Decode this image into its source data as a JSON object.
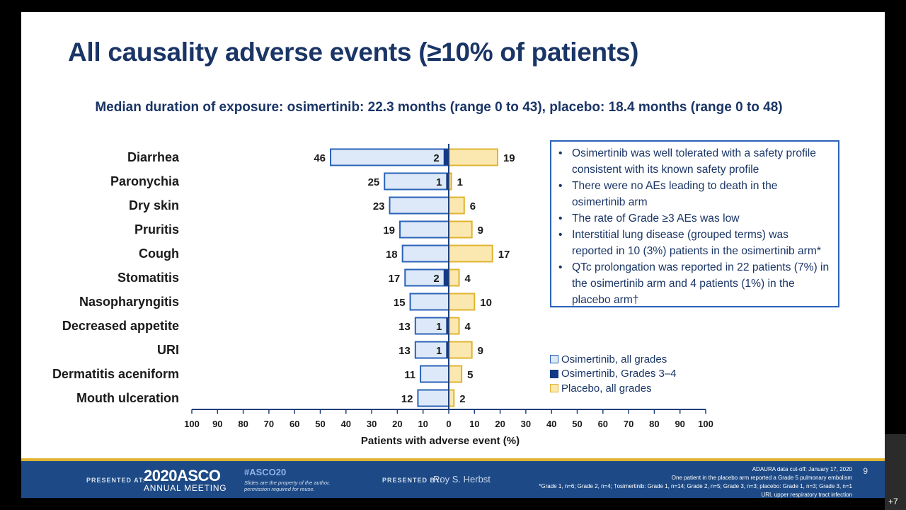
{
  "slide": {
    "title": "All causality adverse events (≥10% of patients)",
    "subtitle": "Median duration of exposure: osimertinib: 22.3 months (range 0 to 43), placebo: 18.4 months (range 0 to 48)",
    "bullets": [
      "Osimertinib was well tolerated with a safety profile consistent with its known safety profile",
      "There were no AEs leading to death in the osimertinib arm",
      "The rate of Grade ≥3 AEs was low",
      "Interstitial lung disease (grouped terms) was reported in 10 (3%) patients in the osimertinib arm*",
      "QTc prolongation was reported in 22 patients (7%) in the osimertinib arm and 4 patients (1%) in the placebo arm†"
    ],
    "bullet_symbol": "•"
  },
  "colors": {
    "title": "#1a3566",
    "osi_fill": "#dde9f8",
    "osi_stroke": "#2a62b8",
    "grade34": "#143a85",
    "placebo_fill": "#fbe8b0",
    "placebo_stroke": "#e0b430",
    "footer_bg": "#1d4a86"
  },
  "chart_data": {
    "type": "bar",
    "orientation": "horizontal-diverging",
    "categories": [
      "Diarrhea",
      "Paronychia",
      "Dry skin",
      "Pruritis",
      "Cough",
      "Stomatitis",
      "Nasopharyngitis",
      "Decreased appetite",
      "URI",
      "Dermatitis aceniform",
      "Mouth ulceration"
    ],
    "series": [
      {
        "name": "Osimertinib, all grades",
        "direction": "left",
        "values": [
          46,
          25,
          23,
          19,
          18,
          17,
          15,
          13,
          13,
          11,
          12
        ]
      },
      {
        "name": "Osimertinib, Grades 3–4",
        "direction": "left",
        "values": [
          2,
          1,
          null,
          null,
          null,
          2,
          null,
          1,
          1,
          null,
          null
        ]
      },
      {
        "name": "Placebo, all grades",
        "direction": "right",
        "values": [
          19,
          1,
          6,
          9,
          17,
          4,
          10,
          4,
          9,
          5,
          2
        ]
      }
    ],
    "xlabel": "Patients with adverse event (%)",
    "xticks": [
      "100",
      "90",
      "80",
      "70",
      "60",
      "50",
      "40",
      "30",
      "20",
      "10",
      "0",
      "10",
      "20",
      "30",
      "40",
      "50",
      "60",
      "70",
      "80",
      "90",
      "100"
    ],
    "xlim": [
      -100,
      100
    ],
    "grid": false,
    "legend": "right"
  },
  "footer": {
    "presented_at": "PRESENTED AT:",
    "year": "2020ASCO",
    "meeting": "ANNUAL MEETING",
    "hashtag": "#ASCO20",
    "note_line1": "Slides are the property of the author,",
    "note_line2": "permission required for reuse.",
    "presented_by": "PRESENTED BY:",
    "presenter": "Roy S. Herbst",
    "footnotes": [
      "ADAURA data cut-off: January 17, 2020",
      "One patient in the placebo arm reported a Grade 5 pulmonary embolism",
      "*Grade 1, n=6; Grade 2, n=4; †osimertinib: Grade 1, n=14; Grade 2, n=5; Grade 3, n=3; placebo: Grade 1, n=3; Grade 3, n=1",
      "URI, upper respiratory tract infection"
    ],
    "page": "9"
  },
  "player": {
    "badge": "+7"
  }
}
